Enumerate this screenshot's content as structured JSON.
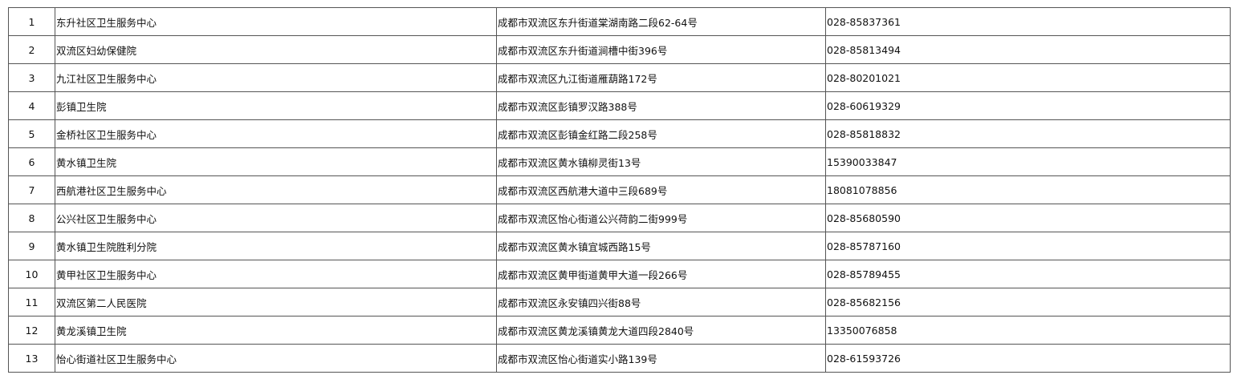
{
  "table": {
    "rows": [
      [
        "1",
        "东升社区卫生服务中心",
        "成都市双流区东升街道棠湖南路二段62-64号",
        "028-85837361"
      ],
      [
        "2",
        "双流区妇幼保健院",
        "成都市双流区东升街道涧槽中街396号",
        "028-85813494"
      ],
      [
        "3",
        "九江社区卫生服务中心",
        "成都市双流区九江街道雁葫路172号",
        "028-80201021"
      ],
      [
        "4",
        "彭镇卫生院",
        "成都市双流区彭镇罗汉路388号",
        "028-60619329"
      ],
      [
        "5",
        "金桥社区卫生服务中心",
        "成都市双流区彭镇金红路二段258号",
        "028-85818832"
      ],
      [
        "6",
        "黄水镇卫生院",
        "成都市双流区黄水镇柳灵街13号",
        "15390033847"
      ],
      [
        "7",
        "西航港社区卫生服务中心",
        "成都市双流区西航港大道中三段689号",
        "18081078856"
      ],
      [
        "8",
        "公兴社区卫生服务中心",
        "成都市双流区怡心街道公兴荷韵二街999号",
        "028-85680590"
      ],
      [
        "9",
        "黄水镇卫生院胜利分院",
        "成都市双流区黄水镇宜城西路15号",
        "028-85787160"
      ],
      [
        "10",
        "黄甲社区卫生服务中心",
        "成都市双流区黄甲街道黄甲大道一段266号",
        "028-85789455"
      ],
      [
        "11",
        "双流区第二人民医院",
        "成都市双流区永安镇四兴街88号",
        "028-85682156"
      ],
      [
        "12",
        "黄龙溪镇卫生院",
        "成都市双流区黄龙溪镇黄龙大道四段2840号",
        "13350076858"
      ],
      [
        "13",
        "怡心街道社区卫生服务中心",
        "成都市双流区怡心街道实小路139号",
        "028-61593726"
      ]
    ]
  }
}
